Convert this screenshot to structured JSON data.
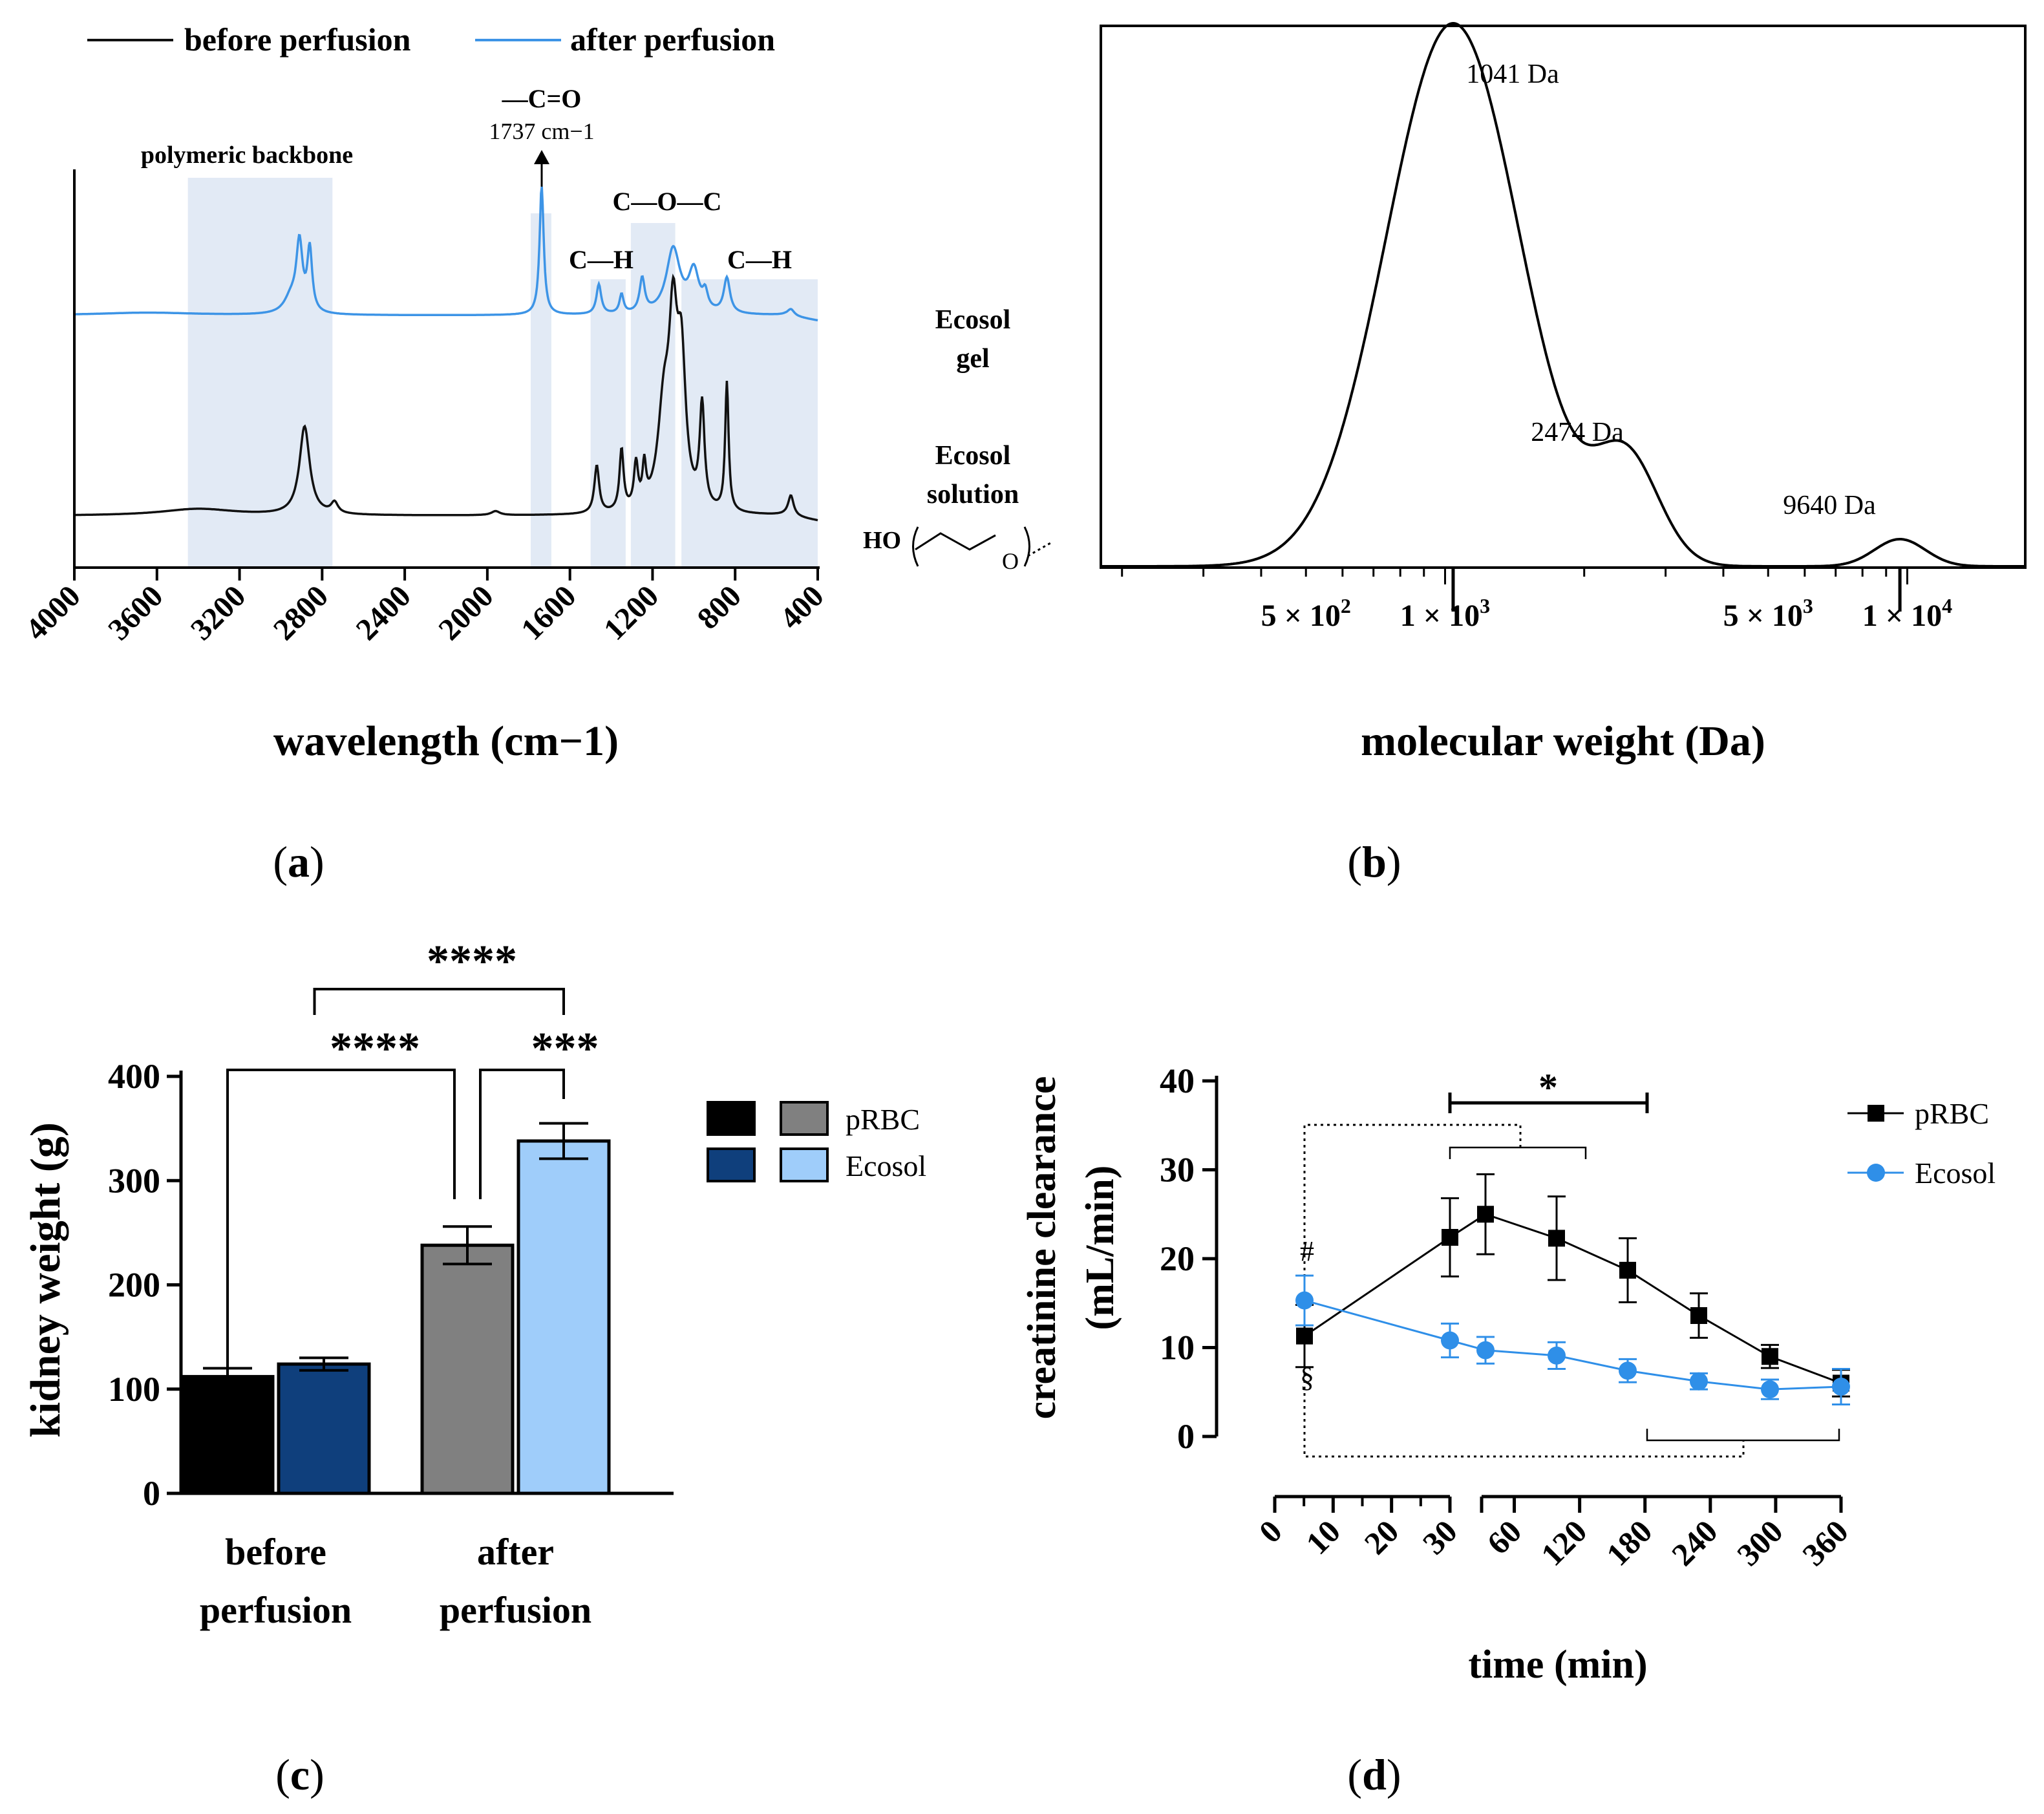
{
  "chart_data": [
    {
      "panel": "(a)",
      "type": "line",
      "title": "",
      "xlabel": "wavelength (cm−1)",
      "ylabel": "",
      "xlim": [
        4000,
        400
      ],
      "x_ticks": [
        4000,
        3600,
        3200,
        2800,
        2400,
        2000,
        1600,
        1200,
        800,
        400
      ],
      "legend": {
        "placement": "top",
        "entries": [
          "before perfusion",
          "after perfusion"
        ]
      },
      "series": [
        {
          "name": "after perfusion",
          "color": "#3d94e6",
          "label": [
            "Ecosol",
            "gel"
          ],
          "baseline": 0.78,
          "peaks": [
            [
              3650,
              0.02,
              300
            ],
            [
              2910,
              0.5,
              18
            ],
            [
              2860,
              0.46,
              14
            ],
            [
              2950,
              0.12,
              40
            ],
            [
              1737,
              0.95,
              12
            ],
            [
              1460,
              0.22,
              14
            ],
            [
              1350,
              0.14,
              12
            ],
            [
              1250,
              0.25,
              15
            ],
            [
              1100,
              0.48,
              40
            ],
            [
              1000,
              0.3,
              30
            ],
            [
              945,
              0.12,
              15
            ],
            [
              840,
              0.26,
              18
            ],
            [
              530,
              0.05,
              20
            ]
          ]
        },
        {
          "name": "before perfusion",
          "color": "#111111",
          "label": [
            "Ecosol",
            "solution"
          ],
          "baseline": 0.16,
          "peaks": [
            [
              3400,
              0.05,
              220
            ],
            [
              2885,
              0.65,
              30
            ],
            [
              2740,
              0.08,
              20
            ],
            [
              1960,
              0.03,
              25
            ],
            [
              1470,
              0.35,
              14
            ],
            [
              1350,
              0.45,
              12
            ],
            [
              1280,
              0.32,
              12
            ],
            [
              1240,
              0.28,
              10
            ],
            [
              1145,
              0.7,
              35
            ],
            [
              1100,
              1.2,
              25
            ],
            [
              1060,
              1.0,
              25
            ],
            [
              960,
              0.75,
              14
            ],
            [
              840,
              0.95,
              10
            ],
            [
              530,
              0.15,
              16
            ]
          ]
        }
      ],
      "annotations": [
        {
          "text": "polymeric backbone",
          "range": [
            3450,
            2750
          ]
        },
        {
          "text": "—C=O",
          "sub": "1737 cm−1",
          "range": [
            1790,
            1690
          ]
        },
        {
          "text": "C—H",
          "range": [
            1500,
            1330
          ]
        },
        {
          "text": "C—O—C",
          "range": [
            1305,
            1090
          ]
        },
        {
          "text": "C—H",
          "range": [
            1060,
            400
          ]
        }
      ],
      "structure_label": "HO",
      "structure_atom": "O"
    },
    {
      "panel": "(b)",
      "type": "line",
      "title": "",
      "xlabel": "molecular weight (Da)",
      "ylabel": "",
      "x_scale": "log",
      "xlim": [
        180,
        18000
      ],
      "tick_labels": [
        {
          "value": 500,
          "label": "5 × 10",
          "exp": "2"
        },
        {
          "value": 1000,
          "label": "1 × 10",
          "exp": "3"
        },
        {
          "value": 5000,
          "label": "5 × 10",
          "exp": "3"
        },
        {
          "value": 10000,
          "label": "1 × 10",
          "exp": "4"
        }
      ],
      "peaks": [
        {
          "value": 1041,
          "label": "1041 Da",
          "height": 1.0
        },
        {
          "value": 2474,
          "label": "2474 Da",
          "height": 0.19
        },
        {
          "value": 9640,
          "label": "9640 Da",
          "height": 0.05
        }
      ]
    },
    {
      "panel": "(c)",
      "type": "bar",
      "title": "",
      "xlabel": "",
      "ylabel": "kidney weight (g)",
      "ylim": [
        0,
        400
      ],
      "y_ticks": [
        0,
        100,
        200,
        300,
        400
      ],
      "categories": [
        {
          "label": [
            "before",
            "perfusion"
          ]
        },
        {
          "label": [
            "after",
            "perfusion"
          ]
        }
      ],
      "bars": [
        {
          "category": 0,
          "series": "pRBC",
          "value": 112,
          "error": 8,
          "color": "#000000"
        },
        {
          "category": 0,
          "series": "Ecosol",
          "value": 124,
          "error": 6,
          "color": "#0f3f7c"
        },
        {
          "category": 1,
          "series": "pRBC",
          "value": 238,
          "error": 18,
          "color": "#808080"
        },
        {
          "category": 1,
          "series": "Ecosol",
          "value": 338,
          "error": 17,
          "color": "#9fcdfa"
        }
      ],
      "legend": {
        "placement": "right",
        "entries": [
          {
            "label": "pRBC",
            "colors": [
              "#000000",
              "#808080"
            ]
          },
          {
            "label": "Ecosol",
            "colors": [
              "#0f3f7c",
              "#9fcdfa"
            ]
          }
        ]
      },
      "significance": [
        {
          "text": "****",
          "from": 0,
          "to": 2
        },
        {
          "text": "***",
          "from": 2,
          "to": 3
        },
        {
          "text": "****",
          "from": 1,
          "to": 3
        }
      ]
    },
    {
      "panel": "(d)",
      "type": "line",
      "title": "",
      "xlabel": "time (min)",
      "ylabel": [
        "creatinine clearance",
        "(mL/min)"
      ],
      "ylim": [
        0,
        40
      ],
      "y_ticks": [
        0,
        10,
        20,
        30,
        40
      ],
      "x_ticks_segment1": [
        0,
        10,
        20,
        30
      ],
      "x_ticks_segment2": [
        60,
        120,
        180,
        240,
        300,
        360
      ],
      "series": [
        {
          "name": "pRBC",
          "color": "#000000",
          "marker": "square",
          "x": [
            5,
            30,
            60,
            120,
            180,
            240,
            300,
            360
          ],
          "y": [
            11.3,
            22.4,
            25.0,
            22.3,
            18.7,
            13.6,
            9.0,
            6.0
          ],
          "err": [
            3.5,
            4.4,
            4.5,
            4.7,
            3.6,
            2.5,
            1.3,
            1.5
          ]
        },
        {
          "name": "Ecosol",
          "color": "#2f8fe8",
          "marker": "circle",
          "x": [
            5,
            30,
            60,
            120,
            180,
            240,
            300,
            360
          ],
          "y": [
            15.3,
            10.8,
            9.7,
            9.1,
            7.4,
            6.2,
            5.3,
            5.6
          ],
          "err": [
            2.8,
            1.9,
            1.5,
            1.5,
            1.3,
            0.9,
            1.1,
            2.0
          ]
        }
      ],
      "legend": {
        "placement": "top-right",
        "entries": [
          "pRBC",
          "Ecosol"
        ]
      },
      "annotations": [
        "*",
        "#",
        "§"
      ]
    }
  ],
  "panel_labels": [
    "a",
    "b",
    "c",
    "d"
  ]
}
